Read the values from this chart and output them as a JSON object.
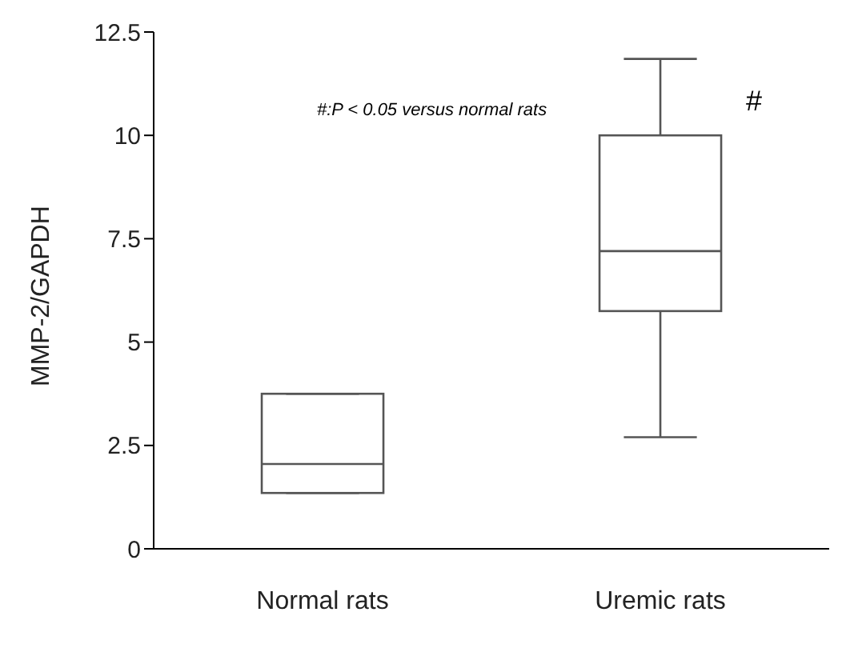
{
  "chart_data": {
    "type": "box",
    "ylabel": "MMP-2/GAPDH",
    "categories": [
      "Normal rats",
      "Uremic rats"
    ],
    "boxes": [
      {
        "low": 1.35,
        "q1": 1.35,
        "median": 2.05,
        "q3": 3.75,
        "high": 3.75
      },
      {
        "low": 2.7,
        "q1": 5.75,
        "median": 7.2,
        "q3": 10,
        "high": 11.85
      }
    ],
    "color": "#555555",
    "ylim": [
      0,
      12.5
    ],
    "yticks": [
      0,
      2.5,
      5,
      7.5,
      10,
      12.5
    ],
    "grid": false,
    "annotations": [
      "#:P < 0.05 versus normal rats",
      "#"
    ]
  }
}
